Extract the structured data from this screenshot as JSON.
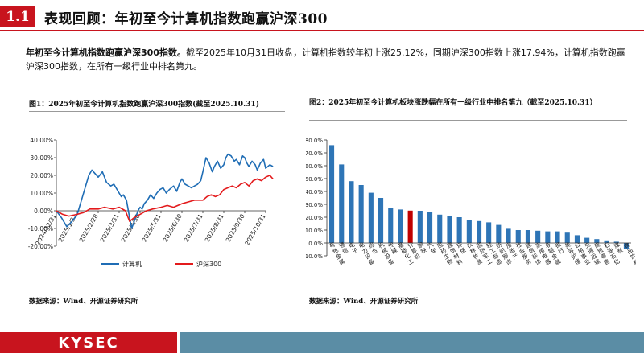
{
  "header": {
    "section_number": "1.1",
    "title": "表现回顾：年初至今计算机指数跑赢沪深300"
  },
  "summary": {
    "lead": "年初至今计算机指数跑赢沪深300指数。",
    "body": "截至2025年10月31日收盘，计算机指数较年初上涨25.12%，同期沪深300指数上涨17.94%，计算机指数跑赢沪深300指数，在所有一级行业中排名第九。"
  },
  "figure1": {
    "title": "图1：2025年初至今计算机指数跑赢沪深300指数(截至2025.10.31)",
    "source": "数据来源：Wind、开源证券研究所"
  },
  "figure2": {
    "title": "图2：2025年初至今计算机板块涨跌幅在所有一级行业中排名第九（截至2025.10.31）",
    "source": "数据来源：Wind、开源证券研究所"
  },
  "chart_data": [
    {
      "type": "line",
      "title": "2025年初至今计算机指数跑赢沪深300指数(截至2025.10.31)",
      "x_tick_labels": [
        "2024/12/31",
        "2025/1/31",
        "2025/2/28",
        "2025/3/31",
        "2025/4/30",
        "2025/5/31",
        "2025/6/30",
        "2025/7/31",
        "2025/8/31",
        "2025/9/30",
        "2025/10/31"
      ],
      "y_tick_labels": [
        "40.00%",
        "30.00%",
        "20.00%",
        "10.00%",
        "0.00%",
        "-10.00%",
        "-20.00%"
      ],
      "ylim": [
        -20,
        40
      ],
      "y_unit": "%",
      "series": [
        {
          "name": "计算机",
          "color": "#1f6db5",
          "x": [
            0,
            0.25,
            0.5,
            0.75,
            1.0,
            1.2,
            1.4,
            1.55,
            1.7,
            1.85,
            2.0,
            2.2,
            2.4,
            2.6,
            2.75,
            2.9,
            3.0,
            3.1,
            3.2,
            3.35,
            3.5,
            3.6,
            3.75,
            3.9,
            4.0,
            4.1,
            4.2,
            4.35,
            4.5,
            4.65,
            4.8,
            4.95,
            5.1,
            5.25,
            5.4,
            5.6,
            5.75,
            5.9,
            6.0,
            6.15,
            6.3,
            6.45,
            6.6,
            6.75,
            6.9,
            7.0,
            7.15,
            7.3,
            7.45,
            7.55,
            7.7,
            7.85,
            8.0,
            8.1,
            8.2,
            8.35,
            8.5,
            8.6,
            8.75,
            8.9,
            9.0,
            9.1,
            9.2,
            9.35,
            9.5,
            9.6,
            9.75,
            9.9,
            10.0,
            10.2,
            10.35
          ],
          "values": [
            0,
            -4,
            -9,
            -6,
            -2,
            6,
            14,
            20,
            23,
            21,
            19,
            22,
            16,
            14,
            15,
            12,
            10,
            8,
            9,
            6,
            -4,
            -10,
            -5,
            0,
            2,
            1,
            4,
            6,
            9,
            7,
            10,
            12,
            13,
            10,
            12,
            14,
            11,
            16,
            18,
            15,
            14,
            13,
            14,
            15,
            17,
            22,
            30,
            27,
            22,
            25,
            28,
            24,
            26,
            30,
            32,
            31,
            28,
            29,
            26,
            31,
            30,
            27,
            25,
            28,
            26,
            23,
            27,
            29,
            24,
            26,
            25
          ]
        },
        {
          "name": "沪深300",
          "color": "#e31a1c",
          "x": [
            0,
            0.3,
            0.6,
            1.0,
            1.3,
            1.6,
            2.0,
            2.3,
            2.7,
            3.0,
            3.3,
            3.5,
            3.7,
            4.0,
            4.3,
            4.6,
            5.0,
            5.3,
            5.6,
            6.0,
            6.3,
            6.6,
            7.0,
            7.2,
            7.4,
            7.6,
            7.8,
            8.0,
            8.2,
            8.4,
            8.6,
            8.8,
            9.0,
            9.2,
            9.4,
            9.6,
            9.8,
            10.0,
            10.2,
            10.35
          ],
          "values": [
            0,
            -2,
            -3,
            -2,
            -1,
            1,
            1,
            2,
            1,
            2,
            0,
            -6,
            -4,
            -2,
            0,
            1,
            2,
            3,
            2,
            4,
            5,
            6,
            6,
            8,
            9,
            8,
            9,
            12,
            13,
            14,
            13,
            15,
            16,
            14,
            17,
            18,
            17,
            19,
            20,
            18
          ]
        }
      ],
      "legend": [
        "计算机",
        "沪深300"
      ],
      "legend_position": "bottom"
    },
    {
      "type": "bar",
      "title": "2025年初至今计算机板块涨跌幅在所有一级行业中排名第九（截至2025.10.31）",
      "ylim": [
        -10,
        80
      ],
      "y_tick_labels": [
        "80.0%",
        "70.0%",
        "60.0%",
        "50.0%",
        "40.0%",
        "30.0%",
        "20.0%",
        "10.0%",
        "0.0%",
        "-10.0%"
      ],
      "bar_color": "#2e75b6",
      "highlight_color": "#c00000",
      "highlight_category": "计算机",
      "categories": [
        "有色金属",
        "通信",
        "电子",
        "电力设备",
        "综合",
        "机械设备",
        "传媒",
        "基础化工",
        "计算机",
        "钢铁",
        "汽车",
        "医药生物",
        "建筑材料",
        "环保",
        "农林牧渔",
        "国防军工",
        "轻工制造",
        "纺织服饰",
        "房地产",
        "社会服务",
        "建筑装饰",
        "家用电器",
        "非银金融",
        "银行",
        "美容护理",
        "公用事业",
        "交通运输",
        "商贸零售",
        "石油石化",
        "煤炭",
        "食品饮料"
      ],
      "values": [
        76,
        61,
        48,
        45,
        39,
        35,
        27,
        26,
        25.1,
        25,
        24,
        22,
        21,
        20,
        18,
        17,
        16,
        14,
        11,
        10,
        10,
        9.5,
        9,
        9,
        8,
        6,
        4,
        3,
        2,
        1,
        -5
      ]
    }
  ],
  "footer": {
    "logo": "KYSEC",
    "logo_color": "#c8141e",
    "band_color": "#5b8da5"
  }
}
